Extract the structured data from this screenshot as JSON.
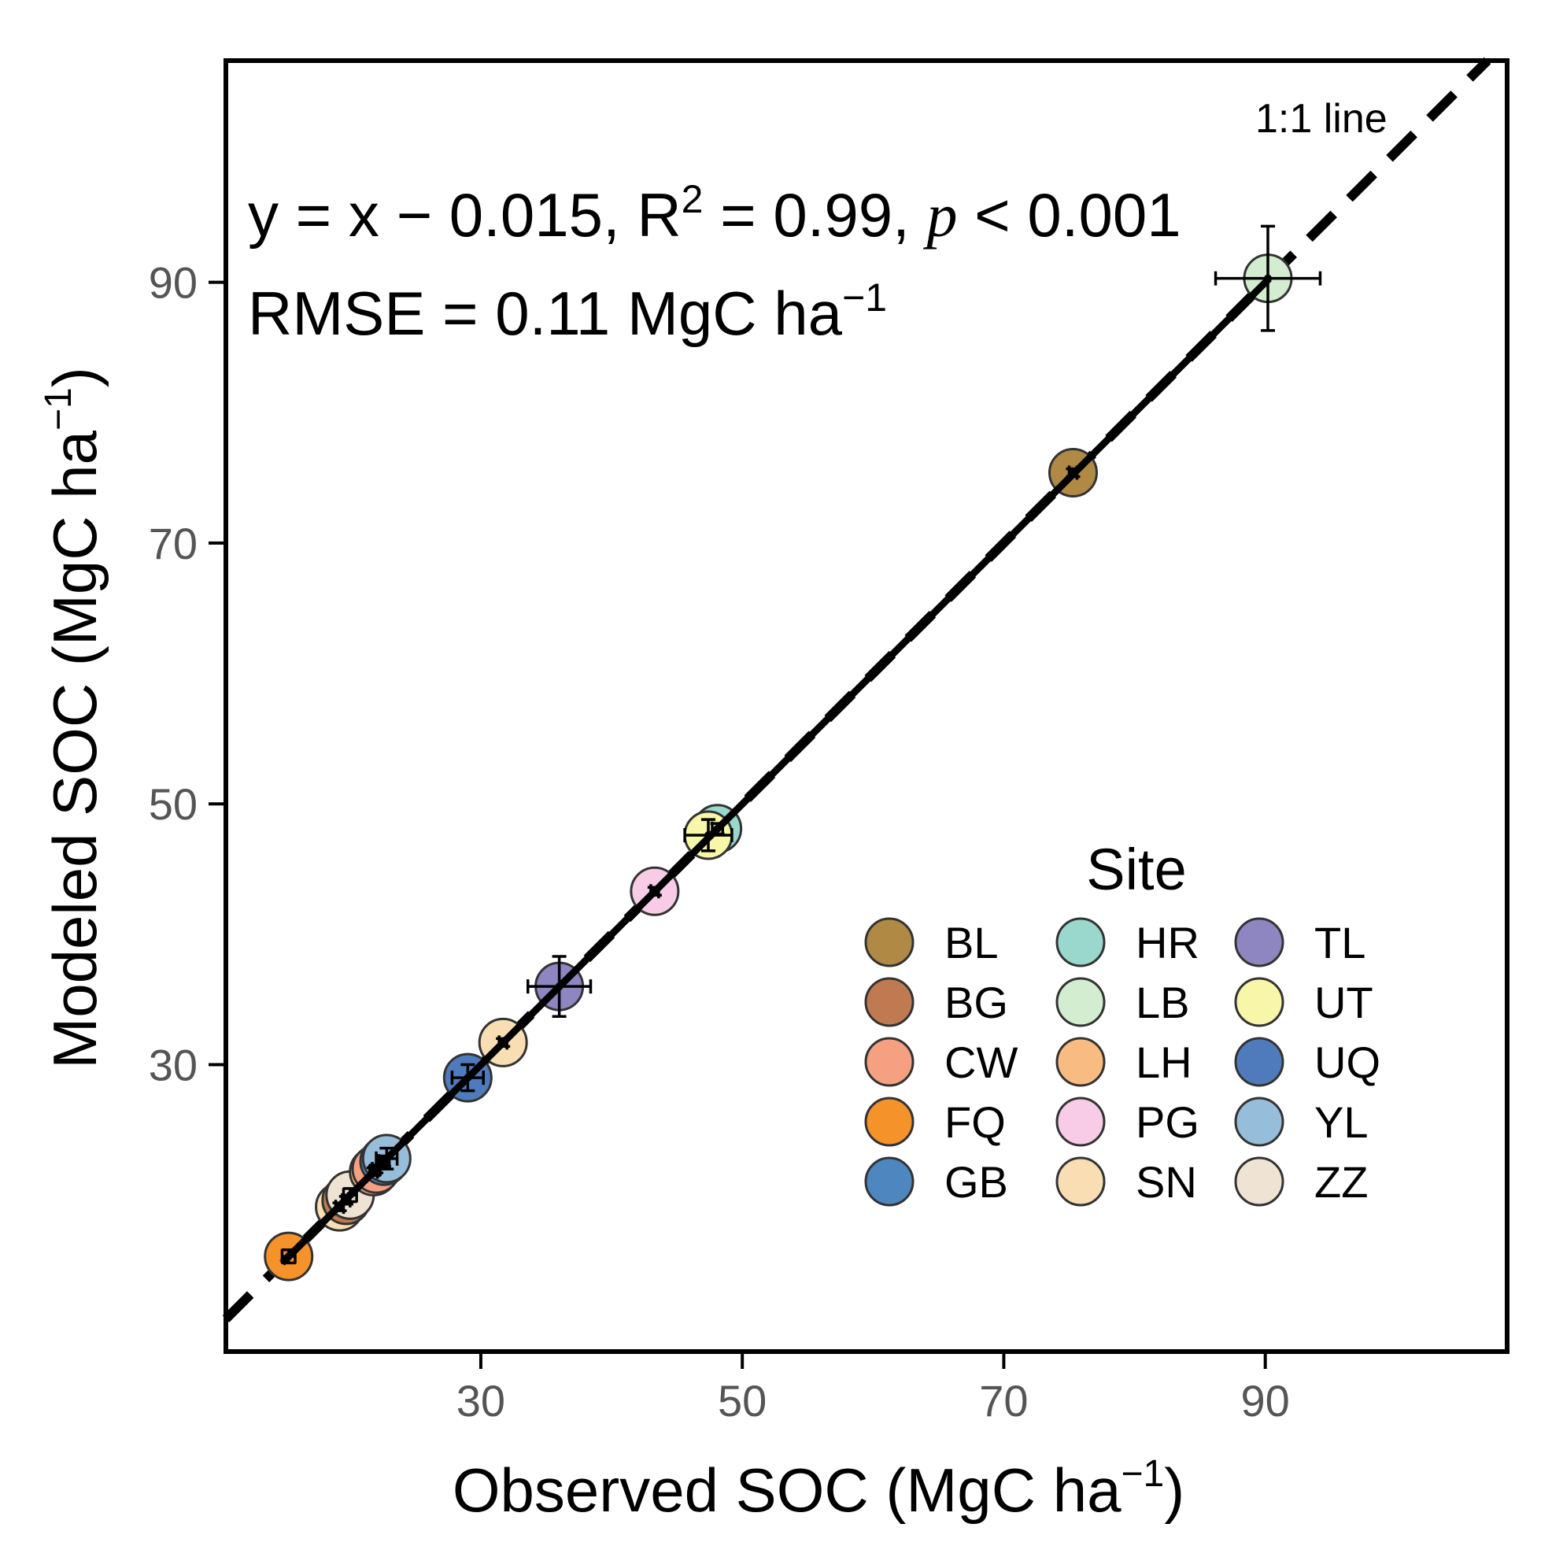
{
  "chart_data": {
    "type": "scatter",
    "title": "",
    "xlabel": "Observed SOC (MgC ha",
    "ylabel": "Modeled SOC (MgC ha",
    "unit_superscript": "−1",
    "xlim": [
      10.5,
      108.5
    ],
    "ylim": [
      8.0,
      107.0
    ],
    "xticks": [
      30,
      50,
      70,
      90
    ],
    "yticks": [
      30,
      50,
      70,
      90
    ],
    "grid": false,
    "oneone_label": "1:1 line",
    "annotations": {
      "equation_prefix": "y = x − 0.015, R",
      "equation_sup": "2",
      "equation_mid": " = 0.99, ",
      "equation_p": "p",
      "equation_suffix": " < 0.001",
      "rmse_text": "RMSE = 0.11 MgC ha",
      "rmse_sup": "−1"
    },
    "regression": {
      "slope": 1.0,
      "intercept": -0.015,
      "x_range": [
        14.8,
        90.3
      ]
    },
    "legend": {
      "title": "Site",
      "position": "bottom-right",
      "entries": [
        {
          "name": "BL",
          "color": "#B08A45"
        },
        {
          "name": "BG",
          "color": "#C07A52"
        },
        {
          "name": "CW",
          "color": "#F5A080"
        },
        {
          "name": "FQ",
          "color": "#F5922A"
        },
        {
          "name": "GB",
          "color": "#4E86C0"
        },
        {
          "name": "HR",
          "color": "#9AD7CD"
        },
        {
          "name": "LB",
          "color": "#D2EDCF"
        },
        {
          "name": "LH",
          "color": "#F8BC82"
        },
        {
          "name": "PG",
          "color": "#F8CCE6"
        },
        {
          "name": "SN",
          "color": "#F9DEB3"
        },
        {
          "name": "TL",
          "color": "#8D86C0"
        },
        {
          "name": "UT",
          "color": "#F8F6A8"
        },
        {
          "name": "UQ",
          "color": "#4F7BBD"
        },
        {
          "name": "YL",
          "color": "#96BEDB"
        },
        {
          "name": "ZZ",
          "color": "#EFE3D3"
        }
      ]
    },
    "points": [
      {
        "site": "FQ",
        "x": 15.3,
        "y": 15.3,
        "xerr": 0.5,
        "yerr": 0.5
      },
      {
        "site": "SN",
        "x": 19.2,
        "y": 19.1,
        "xerr": 0.3,
        "yerr": 0.3
      },
      {
        "site": "BG",
        "x": 19.7,
        "y": 19.6,
        "xerr": 0.3,
        "yerr": 0.3
      },
      {
        "site": "ZZ",
        "x": 20.0,
        "y": 20.0,
        "xerr": 0.5,
        "yerr": 0.5
      },
      {
        "site": "LH",
        "x": 21.8,
        "y": 21.8,
        "xerr": 0.3,
        "yerr": 0.3
      },
      {
        "site": "CW",
        "x": 22.0,
        "y": 22.0,
        "xerr": 0.3,
        "yerr": 0.3
      },
      {
        "site": "GB",
        "x": 22.6,
        "y": 22.6,
        "xerr": 0.4,
        "yerr": 0.4
      },
      {
        "site": "YL",
        "x": 22.8,
        "y": 22.8,
        "xerr": 0.8,
        "yerr": 0.8
      },
      {
        "site": "UQ",
        "x": 29.0,
        "y": 29.0,
        "xerr": 1.2,
        "yerr": 1.0
      },
      {
        "site": "SN",
        "x": 31.7,
        "y": 31.7,
        "xerr": 0.3,
        "yerr": 0.3
      },
      {
        "site": "TL",
        "x": 36.0,
        "y": 36.0,
        "xerr": 2.4,
        "yerr": 2.3
      },
      {
        "site": "PG",
        "x": 43.3,
        "y": 43.3,
        "xerr": 0.3,
        "yerr": 0.3
      },
      {
        "site": "HR",
        "x": 48.1,
        "y": 48.1,
        "xerr": 0.4,
        "yerr": 0.4
      },
      {
        "site": "UT",
        "x": 47.4,
        "y": 47.6,
        "xerr": 1.8,
        "yerr": 1.2
      },
      {
        "site": "BL",
        "x": 75.3,
        "y": 75.4,
        "xerr": 0.3,
        "yerr": 0.3
      },
      {
        "site": "LB",
        "x": 90.2,
        "y": 90.3,
        "xerr": 4.0,
        "yerr": 4.0
      }
    ]
  }
}
